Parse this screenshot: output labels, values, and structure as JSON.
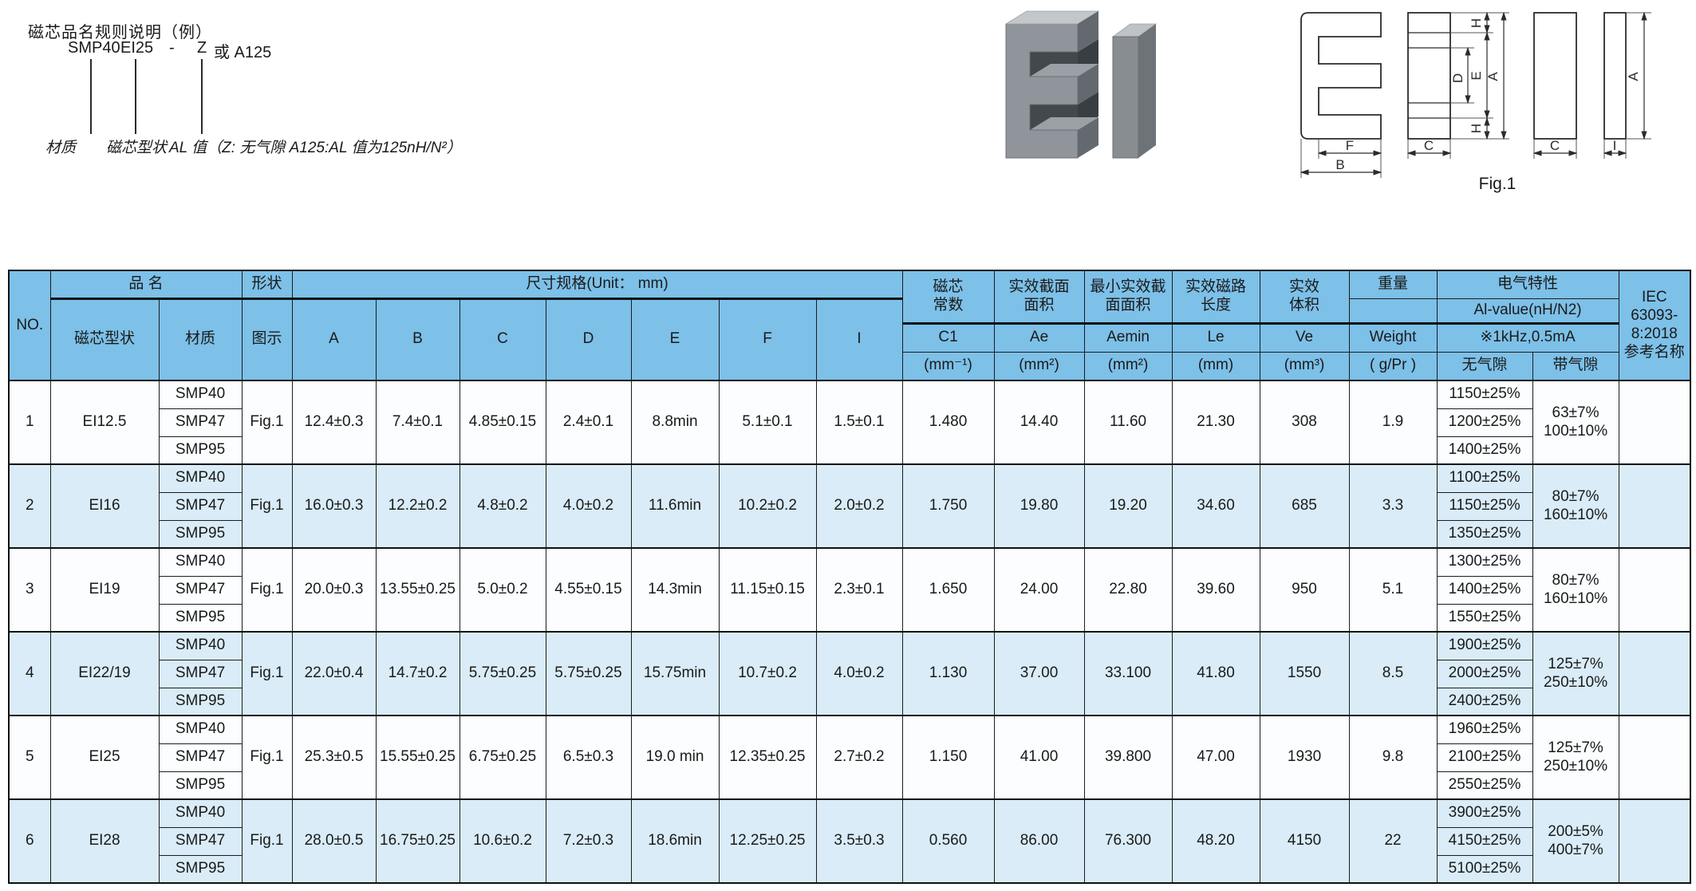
{
  "colors": {
    "header_bg": "#7dc0e8",
    "row_base": "#fbfdfe",
    "row_alt": "#d9ecf7",
    "border": "#1a1a1a"
  },
  "annotation": {
    "title": "磁芯品名规则说明（例）",
    "example": {
      "material": "SMP40",
      "shape": "EI25",
      "dash": "-",
      "al": "Z",
      "alt": "或 A125"
    },
    "labels": {
      "material": "材质",
      "shape": "磁芯型状",
      "al": "AL 值（Z: 无气隙  A125:AL 值为125nH/N²）"
    }
  },
  "fig1": {
    "caption": "Fig.1",
    "labels": {
      "F": "F",
      "B": "B",
      "C_side": "C",
      "H_top": "H",
      "D": "D",
      "E": "E",
      "A_side": "A",
      "H_bottom": "H",
      "C_front": "C",
      "I": "I",
      "A_plate": "A"
    }
  },
  "table": {
    "header": {
      "no": "NO.",
      "product_name": "品  名",
      "shape": "形状",
      "dims_title": "尺寸规格(Unit：  mm)",
      "core_type": "磁芯型状",
      "material": "材质",
      "fig": "图示",
      "dims": [
        "A",
        "B",
        "C",
        "D",
        "E",
        "F",
        "I"
      ],
      "stats": [
        {
          "label": "磁芯\n常数",
          "sym": "C1",
          "unit": "(mm⁻¹)"
        },
        {
          "label": "实效截面\n面积",
          "sym": "Ae",
          "unit": "(mm²)"
        },
        {
          "label": "最小实效截\n面面积",
          "sym": "Aemin",
          "unit": "(mm²)"
        },
        {
          "label": "实效磁路\n长度",
          "sym": "Le",
          "unit": "(mm)"
        },
        {
          "label": "实效\n体积",
          "sym": "Ve",
          "unit": "(mm³)"
        }
      ],
      "weight": {
        "label": "重量",
        "sym": "Weight",
        "unit": "( g/Pr )"
      },
      "electrical": {
        "title": "电气特性",
        "subtitle": "Al-value(nH/N2)",
        "condition": "※1kHz,0.5mA",
        "no_gap": "无气隙",
        "with_gap": "带气隙"
      },
      "iec": "IEC\n63093-\n8:2018\n参考名称"
    },
    "rows": [
      {
        "no": "1",
        "core_type": "EI12.5",
        "materials": [
          "SMP40",
          "SMP47",
          "SMP95"
        ],
        "fig_ref": "Fig.1",
        "A": "12.4±0.3",
        "B": "7.4±0.1",
        "C": "4.85±0.15",
        "D": "2.4±0.1",
        "E": "8.8min",
        "F": "5.1±0.1",
        "I": "1.5±0.1",
        "C1": "1.480",
        "Ae": "14.40",
        "Aemin": "11.60",
        "Le": "21.30",
        "Ve": "308",
        "weight": "1.9",
        "al_no_gap": [
          "1150±25%",
          "1200±25%",
          "1400±25%"
        ],
        "al_with_gap": "63±7%\n100±10%",
        "iec": ""
      },
      {
        "no": "2",
        "core_type": "EI16",
        "materials": [
          "SMP40",
          "SMP47",
          "SMP95"
        ],
        "fig_ref": "Fig.1",
        "A": "16.0±0.3",
        "B": "12.2±0.2",
        "C": "4.8±0.2",
        "D": "4.0±0.2",
        "E": "11.6min",
        "F": "10.2±0.2",
        "I": "2.0±0.2",
        "C1": "1.750",
        "Ae": "19.80",
        "Aemin": "19.20",
        "Le": "34.60",
        "Ve": "685",
        "weight": "3.3",
        "al_no_gap": [
          "1100±25%",
          "1150±25%",
          "1350±25%"
        ],
        "al_with_gap": "80±7%\n160±10%",
        "iec": ""
      },
      {
        "no": "3",
        "core_type": "EI19",
        "materials": [
          "SMP40",
          "SMP47",
          "SMP95"
        ],
        "fig_ref": "Fig.1",
        "A": "20.0±0.3",
        "B": "13.55±0.25",
        "C": "5.0±0.2",
        "D": "4.55±0.15",
        "E": "14.3min",
        "F": "11.15±0.15",
        "I": "2.3±0.1",
        "C1": "1.650",
        "Ae": "24.00",
        "Aemin": "22.80",
        "Le": "39.60",
        "Ve": "950",
        "weight": "5.1",
        "al_no_gap": [
          "1300±25%",
          "1400±25%",
          "1550±25%"
        ],
        "al_with_gap": "80±7%\n160±10%",
        "iec": ""
      },
      {
        "no": "4",
        "core_type": "EI22/19",
        "materials": [
          "SMP40",
          "SMP47",
          "SMP95"
        ],
        "fig_ref": "Fig.1",
        "A": "22.0±0.4",
        "B": "14.7±0.2",
        "C": "5.75±0.25",
        "D": "5.75±0.25",
        "E": "15.75min",
        "F": "10.7±0.2",
        "I": "4.0±0.2",
        "C1": "1.130",
        "Ae": "37.00",
        "Aemin": "33.100",
        "Le": "41.80",
        "Ve": "1550",
        "weight": "8.5",
        "al_no_gap": [
          "1900±25%",
          "2000±25%",
          "2400±25%"
        ],
        "al_with_gap": "125±7%\n250±10%",
        "iec": ""
      },
      {
        "no": "5",
        "core_type": "EI25",
        "materials": [
          "SMP40",
          "SMP47",
          "SMP95"
        ],
        "fig_ref": "Fig.1",
        "A": "25.3±0.5",
        "B": "15.55±0.25",
        "C": "6.75±0.25",
        "D": "6.5±0.3",
        "E": "19.0 min",
        "F": "12.35±0.25",
        "I": "2.7±0.2",
        "C1": "1.150",
        "Ae": "41.00",
        "Aemin": "39.800",
        "Le": "47.00",
        "Ve": "1930",
        "weight": "9.8",
        "al_no_gap": [
          "1960±25%",
          "2100±25%",
          "2550±25%"
        ],
        "al_with_gap": "125±7%\n250±10%",
        "iec": ""
      },
      {
        "no": "6",
        "core_type": "EI28",
        "materials": [
          "SMP40",
          "SMP47",
          "SMP95"
        ],
        "fig_ref": "Fig.1",
        "A": "28.0±0.5",
        "B": "16.75±0.25",
        "C": "10.6±0.2",
        "D": "7.2±0.3",
        "E": "18.6min",
        "F": "12.25±0.25",
        "I": "3.5±0.3",
        "C1": "0.560",
        "Ae": "86.00",
        "Aemin": "76.300",
        "Le": "48.20",
        "Ve": "4150",
        "weight": "22",
        "al_no_gap": [
          "3900±25%",
          "4150±25%",
          "5100±25%"
        ],
        "al_with_gap": "200±5%\n400±7%",
        "iec": ""
      }
    ]
  }
}
